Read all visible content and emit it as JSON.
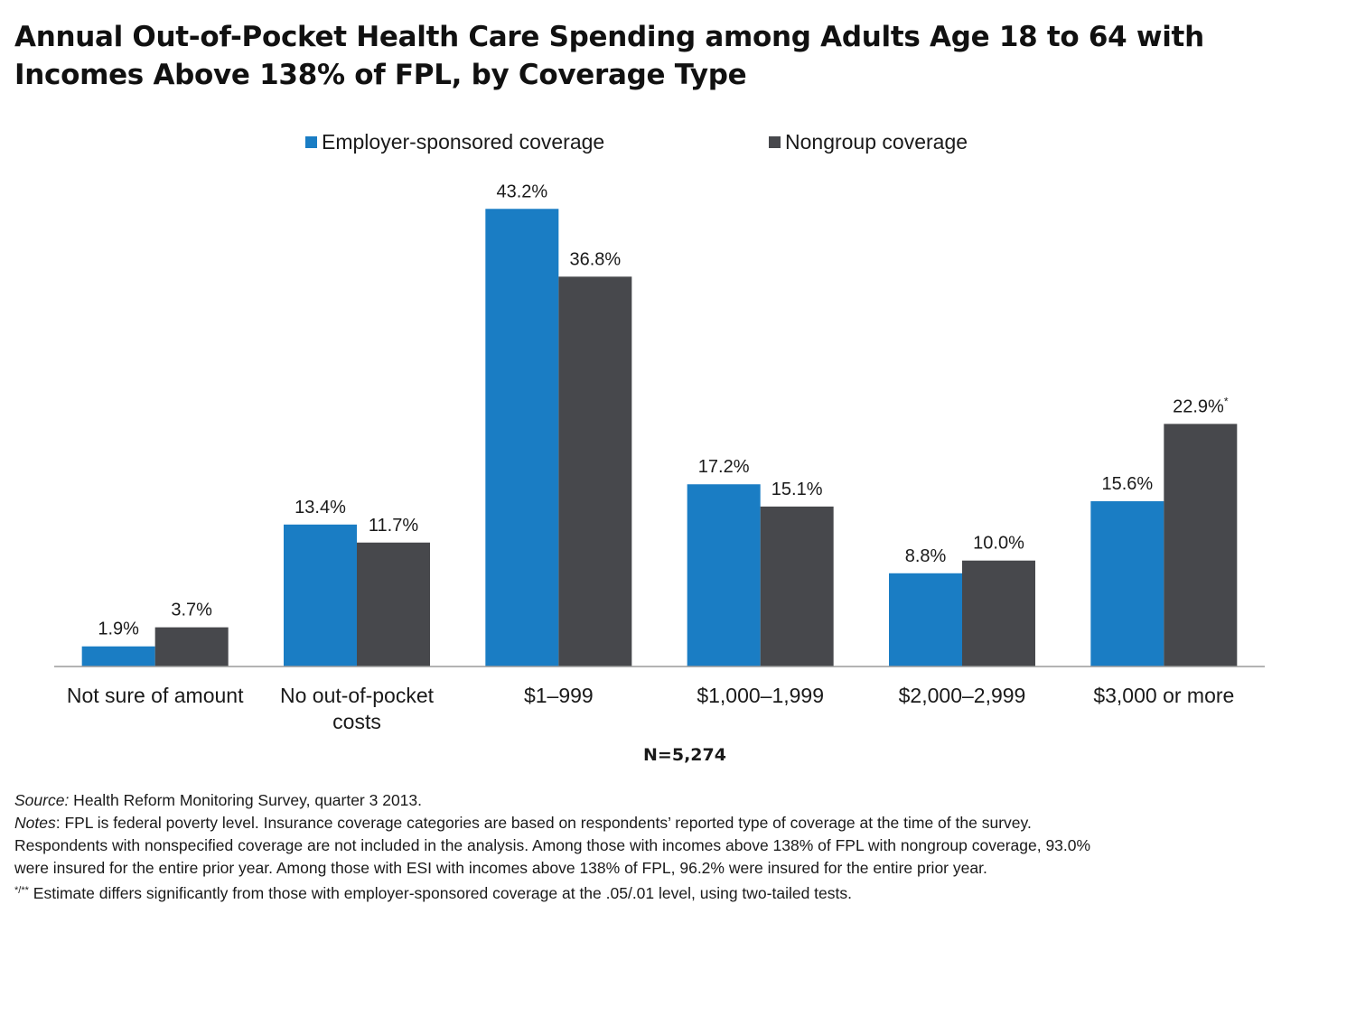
{
  "title_line1": "Annual Out-of-Pocket Health Care Spending among Adults Age 18 to 64 with",
  "title_line2": "Incomes Above 138% of FPL, by Coverage Type",
  "colors": {
    "employer": "#1a7dc4",
    "nongroup": "#47484c",
    "axis": "#9a9a9a"
  },
  "chart_data": {
    "type": "bar",
    "categories": [
      [
        "Not sure of amount"
      ],
      [
        "No out-of-pocket",
        "costs"
      ],
      [
        "$1–999"
      ],
      [
        "$1,000–1,999"
      ],
      [
        "$2,000–2,999"
      ],
      [
        "$3,000 or more"
      ]
    ],
    "series": [
      {
        "name": "Employer-sponsored coverage",
        "color": "#1a7dc4",
        "values": [
          1.9,
          13.4,
          43.2,
          17.2,
          8.8,
          15.6
        ],
        "labels": [
          "1.9%",
          "13.4%",
          "43.2%",
          "17.2%",
          "8.8%",
          "15.6%"
        ]
      },
      {
        "name": "Nongroup coverage",
        "color": "#47484c",
        "values": [
          3.7,
          11.7,
          36.8,
          15.1,
          10.0,
          22.9
        ],
        "labels": [
          "3.7%",
          "11.7%",
          "36.8%",
          "15.1%",
          "10.0%",
          "22.9%*"
        ]
      }
    ],
    "ylim": [
      0,
      45
    ],
    "grid": false,
    "legend_position": "top-center",
    "note": "N=5,274"
  },
  "notes": {
    "source_label": "Source:",
    "source_text": " Health Reform Monitoring Survey, quarter 3 2013.",
    "notes_label": "Notes",
    "notes_line1": ": FPL is federal poverty level. Insurance coverage categories are based on respondents’ reported type of coverage at the time of the survey.",
    "notes_line2": "Respondents with nonspecified coverage are not included in the analysis. Among those with incomes above 138% of FPL with nongroup coverage, 93.0%",
    "notes_line3": "were insured for the entire prior year.  Among those with ESI with incomes above 138% of FPL, 96.2% were insured for the entire prior year.",
    "sig_marker": "*/**",
    "sig_text": " Estimate differs significantly from those with employer-sponsored coverage at the .05/.01 level, using two-tailed tests."
  }
}
